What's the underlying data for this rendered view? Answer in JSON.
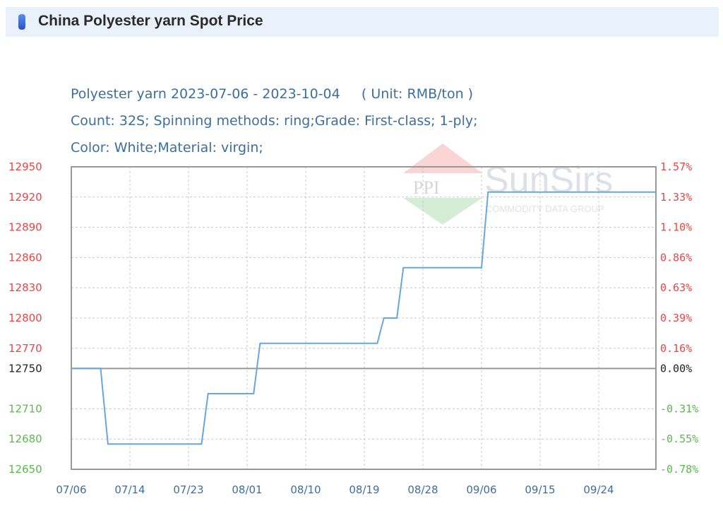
{
  "header": {
    "title": "China Polyester yarn Spot Price",
    "icon": "blue-pill-icon"
  },
  "chart_data": {
    "type": "line",
    "subtitle_lines": [
      "Polyester yarn 2023-07-06 - 2023-10-04     ( Unit: RMB/ton )",
      "Count: 32S; Spinning methods: ring;Grade: First-class; 1-ply;",
      "Color: White;Material: virgin;"
    ],
    "ylim": [
      12650,
      12950
    ],
    "baseline": 12750,
    "y_ticks": [
      {
        "value": 12950,
        "label": "12950",
        "pct": "1.57%"
      },
      {
        "value": 12920,
        "label": "12920",
        "pct": "1.33%"
      },
      {
        "value": 12890,
        "label": "12890",
        "pct": "1.10%"
      },
      {
        "value": 12860,
        "label": "12860",
        "pct": "0.86%"
      },
      {
        "value": 12830,
        "label": "12830",
        "pct": "0.63%"
      },
      {
        "value": 12800,
        "label": "12800",
        "pct": "0.39%"
      },
      {
        "value": 12770,
        "label": "12770",
        "pct": "0.16%"
      },
      {
        "value": 12750,
        "label": "12750",
        "pct": "0.00%"
      },
      {
        "value": 12710,
        "label": "12710",
        "pct": "-0.31%"
      },
      {
        "value": 12680,
        "label": "12680",
        "pct": "-0.55%"
      },
      {
        "value": 12650,
        "label": "12650",
        "pct": "-0.78%"
      }
    ],
    "x_ticks": [
      "07/06",
      "07/14",
      "07/23",
      "08/01",
      "08/10",
      "08/19",
      "08/28",
      "09/06",
      "09/15",
      "09/24"
    ],
    "x_end": "10/04",
    "grid": true,
    "colors": {
      "line": "#6aa5de",
      "up": "#ee4444",
      "down": "#5cb84c",
      "zero": "#222222",
      "axis_text": "#3d6e9c"
    },
    "points": [
      {
        "date": "07/06",
        "value": 12750
      },
      {
        "date": "07/10",
        "value": 12750
      },
      {
        "date": "07/11",
        "value": 12675
      },
      {
        "date": "07/25",
        "value": 12675
      },
      {
        "date": "07/26",
        "value": 12725
      },
      {
        "date": "08/02",
        "value": 12725
      },
      {
        "date": "08/03",
        "value": 12775
      },
      {
        "date": "08/21",
        "value": 12775
      },
      {
        "date": "08/22",
        "value": 12800
      },
      {
        "date": "08/24",
        "value": 12800
      },
      {
        "date": "08/25",
        "value": 12850
      },
      {
        "date": "09/06",
        "value": 12850
      },
      {
        "date": "09/07",
        "value": 12925
      },
      {
        "date": "10/04",
        "value": 12925
      }
    ]
  },
  "watermark": {
    "text": "SunSirs",
    "tagline": "COMMODITY DATA GROUP",
    "mark": "PPI"
  }
}
